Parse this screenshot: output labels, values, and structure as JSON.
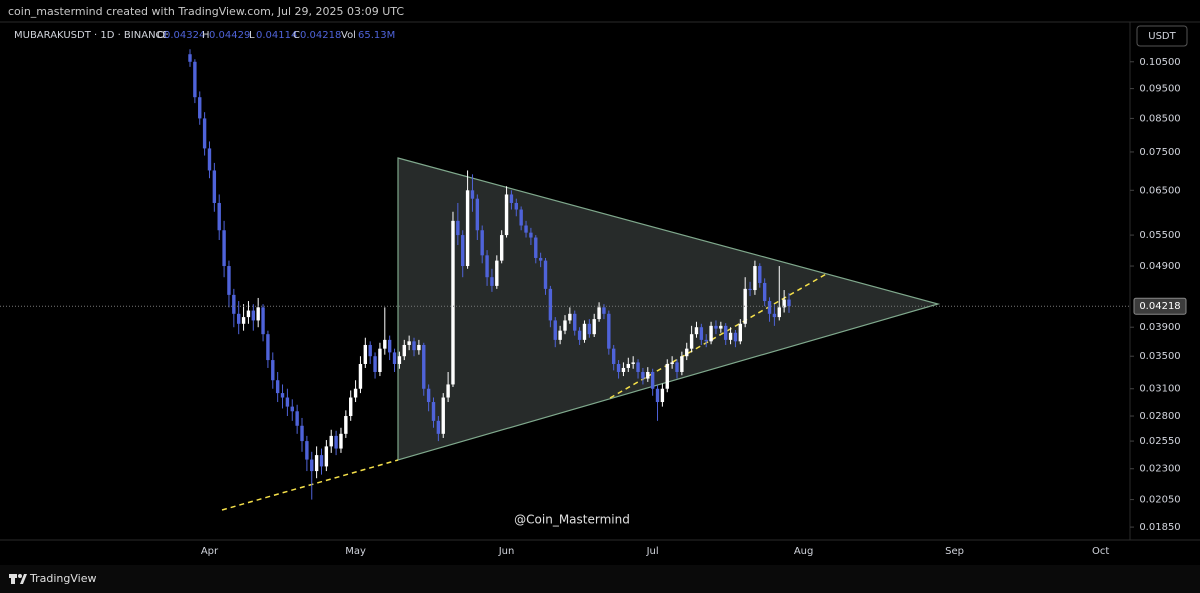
{
  "chart_data": {
    "type": "candlestick",
    "credit": "coin_mastermind created with TradingView.com, Jul 29, 2025 03:09 UTC",
    "symbol": "MUBARAKUSDT · 1D · BINANCE",
    "ohlc_labels": [
      "O",
      "H",
      "L",
      "C",
      "Vol"
    ],
    "volume_label": "65.13M",
    "currency": "USDT",
    "watermark": "@Coin_Mastermind",
    "brand": "TradingView",
    "log_scale": true,
    "up_color": "#ffffff",
    "down_color": "#4f63d9",
    "ylim": [
      0.01763,
      0.1218
    ],
    "yticks": [
      {
        "value": 0.105,
        "label": "0.10500"
      },
      {
        "value": 0.095,
        "label": "0.09500"
      },
      {
        "value": 0.085,
        "label": "0.08500"
      },
      {
        "value": 0.075,
        "label": "0.07500"
      },
      {
        "value": 0.065,
        "label": "0.06500"
      },
      {
        "value": 0.055,
        "label": "0.05500"
      },
      {
        "value": 0.049,
        "label": "0.04900"
      },
      {
        "value": 0.039,
        "label": "0.03900"
      },
      {
        "value": 0.035,
        "label": "0.03500"
      },
      {
        "value": 0.031,
        "label": "0.03100"
      },
      {
        "value": 0.028,
        "label": "0.02800"
      },
      {
        "value": 0.0255,
        "label": "0.02550"
      },
      {
        "value": 0.023,
        "label": "0.02300"
      },
      {
        "value": 0.0205,
        "label": "0.02050"
      },
      {
        "value": 0.0185,
        "label": "0.01850"
      }
    ],
    "categories": [
      null,
      null,
      null,
      null,
      "Apr",
      null,
      null,
      null,
      null,
      null,
      null,
      null,
      null,
      null,
      null,
      null,
      null,
      null,
      null,
      null,
      null,
      null,
      null,
      null,
      null,
      null,
      null,
      null,
      null,
      null,
      null,
      null,
      null,
      null,
      "May",
      null,
      null,
      null,
      null,
      null,
      null,
      null,
      null,
      null,
      null,
      null,
      null,
      null,
      null,
      null,
      null,
      null,
      null,
      null,
      null,
      null,
      null,
      null,
      null,
      null,
      null,
      null,
      null,
      null,
      null,
      "Jun",
      null,
      null,
      null,
      null,
      null,
      null,
      null,
      null,
      null,
      null,
      null,
      null,
      null,
      null,
      null,
      null,
      null,
      null,
      null,
      null,
      null,
      null,
      null,
      null,
      null,
      null,
      null,
      null,
      null,
      "Jul",
      null,
      null,
      null,
      null,
      null,
      null,
      null,
      null,
      null,
      null,
      null,
      null,
      null,
      null,
      null,
      null,
      null,
      null,
      null,
      null,
      null,
      null,
      null,
      null,
      null,
      null,
      null,
      null,
      null,
      null,
      "Aug",
      null,
      null,
      null,
      null,
      null,
      null,
      null,
      null,
      null,
      null,
      null,
      null,
      null,
      null,
      null,
      null,
      null,
      null,
      null,
      null,
      null,
      null,
      null,
      null,
      null,
      null,
      null,
      null,
      null,
      null,
      "Sep",
      null,
      null,
      null,
      null,
      null,
      null,
      null,
      null,
      null,
      null,
      null,
      null,
      null,
      null,
      null,
      null,
      null,
      null,
      null,
      null,
      null,
      null,
      null,
      null,
      null,
      null,
      null,
      null,
      null,
      "Oct",
      null,
      null,
      null,
      null
    ],
    "open": [
      0.108,
      0.105,
      0.092,
      0.085,
      0.076,
      0.07,
      0.062,
      0.056,
      0.049,
      0.044,
      0.041,
      0.0395,
      0.0405,
      0.0415,
      0.04,
      0.042,
      0.038,
      0.0345,
      0.032,
      0.0305,
      0.03,
      0.029,
      0.0285,
      0.027,
      0.0255,
      0.0238,
      0.0228,
      0.0242,
      0.0232,
      0.025,
      0.026,
      0.0248,
      0.0262,
      0.028,
      0.03,
      0.031,
      0.034,
      0.0365,
      0.035,
      0.033,
      0.036,
      0.0372,
      0.0355,
      0.034,
      0.035,
      0.0365,
      0.037,
      0.0358,
      0.0365,
      0.031,
      0.0295,
      0.0275,
      0.0262,
      0.03,
      0.0315,
      0.058,
      0.055,
      0.049,
      0.065,
      0.063,
      0.056,
      0.051,
      0.047,
      0.0455,
      0.05,
      0.055,
      0.064,
      0.062,
      0.0605,
      0.057,
      0.0555,
      0.0545,
      0.0505,
      0.05,
      0.045,
      0.04,
      0.0372,
      0.0385,
      0.04,
      0.041,
      0.0385,
      0.0372,
      0.0395,
      0.038,
      0.0402,
      0.042,
      0.041,
      0.036,
      0.034,
      0.033,
      0.0335,
      0.034,
      0.0342,
      0.033,
      0.0322,
      0.033,
      0.031,
      0.0295,
      0.031,
      0.034,
      0.0342,
      0.033,
      0.035,
      0.036,
      0.038,
      0.039,
      0.0372,
      0.037,
      0.0392,
      0.0388,
      0.0392,
      0.0372,
      0.0382,
      0.037,
      0.0395,
      0.045,
      0.0448,
      0.049,
      0.046,
      0.043,
      0.041,
      0.0405,
      0.042,
      0.04324,
      null,
      null,
      null,
      null,
      null,
      null,
      null,
      null,
      null,
      null,
      null,
      null,
      null,
      null,
      null,
      null,
      null,
      null,
      null,
      null,
      null,
      null,
      null,
      null,
      null,
      null,
      null,
      null,
      null,
      null,
      null,
      null,
      null,
      null,
      null,
      null,
      null,
      null,
      null,
      null,
      null,
      null,
      null,
      null,
      null,
      null,
      null,
      null,
      null,
      null,
      null,
      null,
      null,
      null,
      null,
      null,
      null,
      null,
      null,
      null,
      null,
      null,
      null,
      null,
      null,
      null,
      null,
      null
    ],
    "high": [
      0.11,
      0.106,
      0.094,
      0.087,
      0.078,
      0.072,
      0.064,
      0.058,
      0.05,
      0.045,
      0.043,
      0.0425,
      0.043,
      0.0425,
      0.0435,
      0.0425,
      0.0385,
      0.0355,
      0.033,
      0.0315,
      0.031,
      0.0298,
      0.0292,
      0.0278,
      0.026,
      0.0245,
      0.025,
      0.0248,
      0.0256,
      0.0266,
      0.0265,
      0.0268,
      0.0286,
      0.0308,
      0.032,
      0.035,
      0.0375,
      0.037,
      0.0355,
      0.0368,
      0.042,
      0.0378,
      0.036,
      0.0356,
      0.0372,
      0.0378,
      0.0375,
      0.0372,
      0.0368,
      0.0315,
      0.03,
      0.028,
      0.0305,
      0.033,
      0.06,
      0.062,
      0.056,
      0.07,
      0.069,
      0.064,
      0.057,
      0.052,
      0.0485,
      0.051,
      0.056,
      0.066,
      0.065,
      0.063,
      0.0612,
      0.058,
      0.0565,
      0.055,
      0.0515,
      0.0505,
      0.0455,
      0.0405,
      0.0392,
      0.0408,
      0.042,
      0.0415,
      0.039,
      0.04,
      0.0402,
      0.041,
      0.0428,
      0.0425,
      0.0415,
      0.0365,
      0.0345,
      0.0342,
      0.0348,
      0.035,
      0.0346,
      0.0335,
      0.0336,
      0.0334,
      0.0314,
      0.0316,
      0.0346,
      0.035,
      0.0346,
      0.0356,
      0.0368,
      0.0392,
      0.0398,
      0.0395,
      0.038,
      0.0398,
      0.04,
      0.0398,
      0.0396,
      0.039,
      0.0386,
      0.0402,
      0.047,
      0.0462,
      0.05,
      0.0495,
      0.0468,
      0.0436,
      0.0425,
      0.049,
      0.0448,
      0.04429,
      null,
      null,
      null,
      null,
      null,
      null,
      null,
      null,
      null,
      null,
      null,
      null,
      null,
      null,
      null,
      null,
      null,
      null,
      null,
      null,
      null,
      null,
      null,
      null,
      null,
      null,
      null,
      null,
      null,
      null,
      null,
      null,
      null,
      null,
      null,
      null,
      null,
      null,
      null,
      null,
      null,
      null,
      null,
      null,
      null,
      null,
      null,
      null,
      null,
      null,
      null,
      null,
      null,
      null,
      null,
      null,
      null,
      null,
      null,
      null,
      null,
      null,
      null,
      null,
      null,
      null,
      null,
      null
    ],
    "low": [
      0.103,
      0.09,
      0.083,
      0.074,
      0.068,
      0.06,
      0.054,
      0.047,
      0.042,
      0.039,
      0.038,
      0.0385,
      0.0395,
      0.0385,
      0.039,
      0.037,
      0.0335,
      0.031,
      0.0295,
      0.0288,
      0.028,
      0.0275,
      0.0262,
      0.0245,
      0.0228,
      0.0205,
      0.0222,
      0.0225,
      0.0228,
      0.0244,
      0.0242,
      0.0244,
      0.0258,
      0.0275,
      0.0295,
      0.0305,
      0.0335,
      0.034,
      0.0322,
      0.0325,
      0.0352,
      0.0345,
      0.033,
      0.0334,
      0.0345,
      0.0358,
      0.035,
      0.0352,
      0.0302,
      0.0285,
      0.0268,
      0.0255,
      0.0258,
      0.0295,
      0.0312,
      0.053,
      0.047,
      0.0485,
      0.06,
      0.054,
      0.0495,
      0.0455,
      0.0445,
      0.045,
      0.0495,
      0.0545,
      0.0605,
      0.059,
      0.056,
      0.0545,
      0.053,
      0.0495,
      0.0488,
      0.044,
      0.039,
      0.0362,
      0.0366,
      0.038,
      0.0395,
      0.0378,
      0.0365,
      0.0368,
      0.0375,
      0.0376,
      0.0398,
      0.0402,
      0.0352,
      0.0332,
      0.0322,
      0.0325,
      0.033,
      0.0334,
      0.0322,
      0.0315,
      0.0318,
      0.0302,
      0.0275,
      0.029,
      0.0306,
      0.0334,
      0.0322,
      0.0326,
      0.0345,
      0.0355,
      0.0375,
      0.0365,
      0.0362,
      0.0366,
      0.038,
      0.0382,
      0.0365,
      0.0366,
      0.0362,
      0.0366,
      0.039,
      0.0438,
      0.044,
      0.0452,
      0.0422,
      0.0398,
      0.0392,
      0.04,
      0.0412,
      0.04114,
      null,
      null,
      null,
      null,
      null,
      null,
      null,
      null,
      null,
      null,
      null,
      null,
      null,
      null,
      null,
      null,
      null,
      null,
      null,
      null,
      null,
      null,
      null,
      null,
      null,
      null,
      null,
      null,
      null,
      null,
      null,
      null,
      null,
      null,
      null,
      null,
      null,
      null,
      null,
      null,
      null,
      null,
      null,
      null,
      null,
      null,
      null,
      null,
      null,
      null,
      null,
      null,
      null,
      null,
      null,
      null,
      null,
      null,
      null,
      null,
      null,
      null,
      null,
      null,
      null,
      null,
      null,
      null
    ],
    "close": [
      0.105,
      0.092,
      0.085,
      0.076,
      0.07,
      0.062,
      0.056,
      0.049,
      0.044,
      0.041,
      0.0395,
      0.0405,
      0.0415,
      0.04,
      0.042,
      0.038,
      0.0345,
      0.032,
      0.0305,
      0.03,
      0.029,
      0.0285,
      0.027,
      0.0255,
      0.0238,
      0.0228,
      0.0242,
      0.0232,
      0.025,
      0.026,
      0.0248,
      0.0262,
      0.028,
      0.03,
      0.031,
      0.034,
      0.0365,
      0.035,
      0.033,
      0.036,
      0.0372,
      0.0355,
      0.034,
      0.035,
      0.0365,
      0.037,
      0.0358,
      0.0365,
      0.031,
      0.0295,
      0.0275,
      0.0262,
      0.03,
      0.0315,
      0.058,
      0.055,
      0.049,
      0.065,
      0.063,
      0.056,
      0.051,
      0.047,
      0.0455,
      0.05,
      0.055,
      0.064,
      0.062,
      0.0605,
      0.057,
      0.0555,
      0.0545,
      0.0505,
      0.05,
      0.045,
      0.04,
      0.0372,
      0.0385,
      0.04,
      0.041,
      0.0385,
      0.0372,
      0.0395,
      0.038,
      0.0402,
      0.042,
      0.041,
      0.036,
      0.034,
      0.033,
      0.0335,
      0.034,
      0.0342,
      0.033,
      0.0322,
      0.033,
      0.031,
      0.0295,
      0.031,
      0.034,
      0.0342,
      0.033,
      0.035,
      0.036,
      0.038,
      0.039,
      0.0372,
      0.037,
      0.0392,
      0.0388,
      0.0392,
      0.0372,
      0.0382,
      0.037,
      0.0395,
      0.045,
      0.0448,
      0.049,
      0.046,
      0.043,
      0.041,
      0.0405,
      0.042,
      0.04324,
      0.04218,
      null,
      null,
      null,
      null,
      null,
      null,
      null,
      null,
      null,
      null,
      null,
      null,
      null,
      null,
      null,
      null,
      null,
      null,
      null,
      null,
      null,
      null,
      null,
      null,
      null,
      null,
      null,
      null,
      null,
      null,
      null,
      null,
      null,
      null,
      null,
      null,
      null,
      null,
      null,
      null,
      null,
      null,
      null,
      null,
      null,
      null,
      null,
      null,
      null,
      null,
      null,
      null,
      null,
      null,
      null,
      null,
      null,
      null,
      null,
      null,
      null,
      null,
      null,
      null,
      null,
      null,
      null,
      null
    ]
  }
}
